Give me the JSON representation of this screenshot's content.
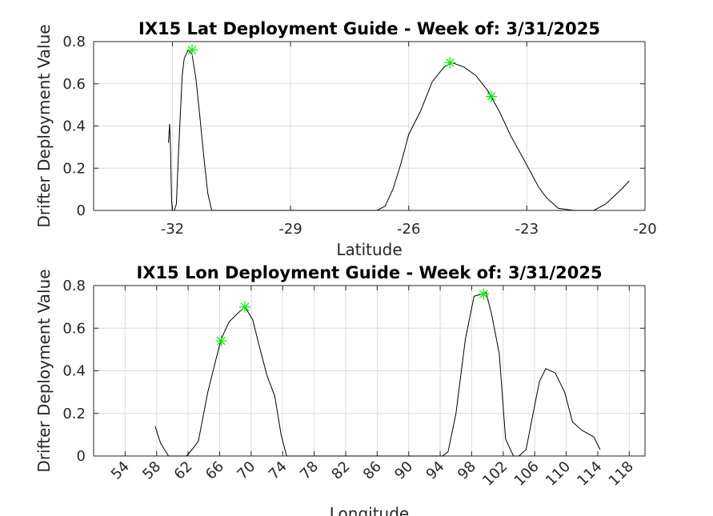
{
  "chart_data": [
    {
      "type": "line",
      "title": "IX15 Lat Deployment Guide - Week of: 3/31/2025",
      "xlabel": "Latitude",
      "ylabel": "Drifter Deployment Value",
      "xlim": [
        -34.0,
        -20.0
      ],
      "ylim": [
        0,
        0.8
      ],
      "xticks": [
        -32,
        -29,
        -26,
        -23,
        -20
      ],
      "xtick_labels": [
        "-32",
        "-29",
        "-26",
        "-23",
        "-20"
      ],
      "yticks": [
        0,
        0.2,
        0.4,
        0.6,
        0.8
      ],
      "ytick_labels": [
        "0",
        "0.2",
        "0.4",
        "0.6",
        "0.8"
      ],
      "grid": true,
      "line_color": "#000000",
      "marker_color": "#00ee00",
      "series": [
        {
          "x": [
            -32.1,
            -32.07,
            -32.05,
            -32.02,
            -32.0,
            -31.95,
            -31.9,
            -31.85,
            -31.8,
            -31.75,
            -31.7,
            -31.6,
            -31.5,
            -31.4,
            -31.3,
            -31.2,
            -31.1,
            -31.0,
            -30.5,
            -29.0,
            -27.5,
            -26.8,
            -26.6,
            -26.4,
            -26.2,
            -26.0,
            -25.7,
            -25.4,
            -25.1,
            -24.9,
            -24.6,
            -24.3,
            -24.0,
            -23.7,
            -23.4,
            -23.1,
            -22.9,
            -22.7,
            -22.5,
            -22.2,
            -21.8,
            -21.5,
            -21.3,
            -21.0,
            -20.6,
            -20.4
          ],
          "y": [
            0.32,
            0.41,
            0.3,
            0.05,
            0.0,
            0.0,
            0.03,
            0.25,
            0.45,
            0.64,
            0.72,
            0.76,
            0.74,
            0.62,
            0.44,
            0.25,
            0.08,
            0.0,
            0.0,
            0.0,
            0.0,
            0.0,
            0.02,
            0.1,
            0.22,
            0.36,
            0.47,
            0.61,
            0.68,
            0.7,
            0.68,
            0.64,
            0.57,
            0.47,
            0.35,
            0.25,
            0.18,
            0.11,
            0.06,
            0.01,
            0.0,
            0.0,
            0.0,
            0.03,
            0.1,
            0.14
          ]
        }
      ],
      "markers": {
        "x": [
          -31.5,
          -24.95,
          -23.9
        ],
        "y": [
          0.76,
          0.7,
          0.54
        ]
      }
    },
    {
      "type": "line",
      "title": "IX15 Lon Deployment Guide - Week of: 3/31/2025",
      "xlabel": "Longitude",
      "ylabel": "Drifter Deployment Value",
      "xlim": [
        50,
        120
      ],
      "ylim": [
        0,
        0.8
      ],
      "xticks": [
        54,
        58,
        62,
        66,
        70,
        74,
        78,
        82,
        86,
        90,
        94,
        98,
        102,
        106,
        110,
        114,
        118
      ],
      "xtick_labels": [
        "54",
        "58",
        "62",
        "66",
        "70",
        "74",
        "78",
        "82",
        "86",
        "90",
        "94",
        "98",
        "102",
        "106",
        "110",
        "114",
        "118"
      ],
      "yticks": [
        0,
        0.2,
        0.4,
        0.6,
        0.8
      ],
      "ytick_labels": [
        "0",
        "0.2",
        "0.4",
        "0.6",
        "0.8"
      ],
      "grid": true,
      "line_color": "#000000",
      "marker_color": "#00ee00",
      "series": [
        {
          "x": [
            57.8,
            58.5,
            59.5,
            60.5,
            61.8,
            62.5,
            63.3,
            64.5,
            65.5,
            66.2,
            67.2,
            68.3,
            69.2,
            70.2,
            71.0,
            72.0,
            73.0,
            73.8,
            74.5,
            80.0,
            88.0,
            94.3,
            95.0,
            96.0,
            97.2,
            98.3,
            99.3,
            99.8,
            100.5,
            101.5,
            102.3,
            103.3,
            104.0,
            104.9,
            105.8,
            106.6,
            107.4,
            108.6,
            109.8,
            110.8,
            112.0,
            113.5,
            114.3
          ],
          "y": [
            0.14,
            0.06,
            0.0,
            0.0,
            0.0,
            0.03,
            0.07,
            0.3,
            0.45,
            0.55,
            0.63,
            0.67,
            0.7,
            0.64,
            0.52,
            0.38,
            0.28,
            0.1,
            0.0,
            0.0,
            0.0,
            0.0,
            0.02,
            0.2,
            0.55,
            0.75,
            0.76,
            0.77,
            0.67,
            0.48,
            0.08,
            0.0,
            0.0,
            0.03,
            0.2,
            0.35,
            0.41,
            0.39,
            0.3,
            0.16,
            0.12,
            0.09,
            0.03
          ]
        }
      ],
      "markers": {
        "x": [
          66.2,
          69.2,
          99.5
        ],
        "y": [
          0.54,
          0.7,
          0.76
        ]
      }
    }
  ]
}
